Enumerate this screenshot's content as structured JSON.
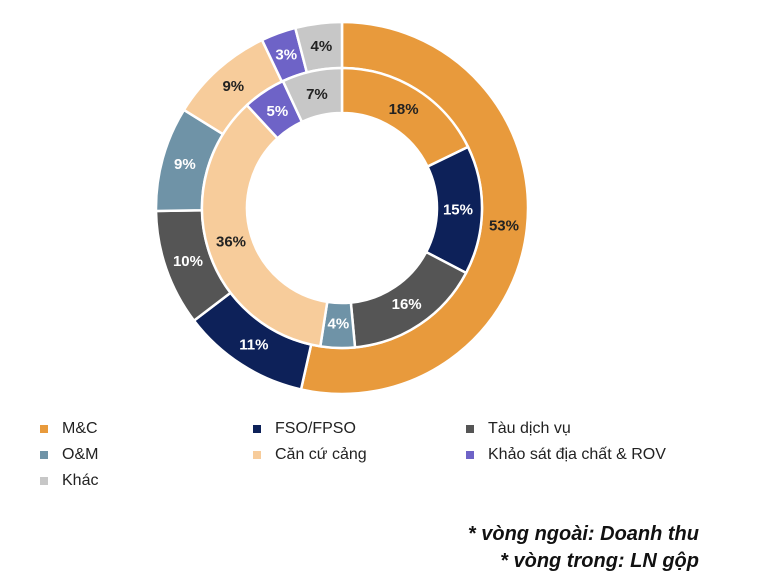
{
  "chart_data": {
    "type": "donut",
    "categories": [
      "M&C",
      "FSO/FPSO",
      "Tàu dịch vụ",
      "O&M",
      "Căn cứ cảng",
      "Khảo sát địa chất & ROV",
      "Khác"
    ],
    "colors": [
      "#E89A3C",
      "#0D2159",
      "#555555",
      "#6F93A7",
      "#F7CC9B",
      "#6E63C7",
      "#C7C7C7"
    ],
    "series": [
      {
        "ring": "outer",
        "order": [
          "M&C",
          "FSO/FPSO",
          "Tàu dịch vụ",
          "O&M",
          "Căn cứ cảng",
          "Khảo sát địa chất & ROV",
          "Khác"
        ],
        "values": [
          53,
          11,
          10,
          9,
          9,
          3,
          4
        ],
        "labels": [
          "53%",
          "11%",
          "10%",
          "9%",
          "9%",
          "3%",
          "4%"
        ]
      },
      {
        "ring": "inner",
        "order": [
          "M&C",
          "FSO/FPSO",
          "Tàu dịch vụ",
          "O&M",
          "Căn cứ cảng",
          "Khảo sát địa chất & ROV",
          "Khác"
        ],
        "values": [
          18,
          15,
          16,
          4,
          36,
          5,
          7
        ],
        "labels": [
          "18%",
          "15%",
          "16%",
          "4%",
          "36%",
          "5%",
          "7%"
        ]
      }
    ],
    "legend": [
      "M&C",
      "FSO/FPSO",
      "Tàu dịch vụ",
      "O&M",
      "Căn cứ cảng",
      "Khảo sát địa chất & ROV",
      "Khác"
    ]
  },
  "notes": {
    "outer": "* vòng ngoài: Doanh thu",
    "inner": "* vòng trong: LN gộp"
  }
}
